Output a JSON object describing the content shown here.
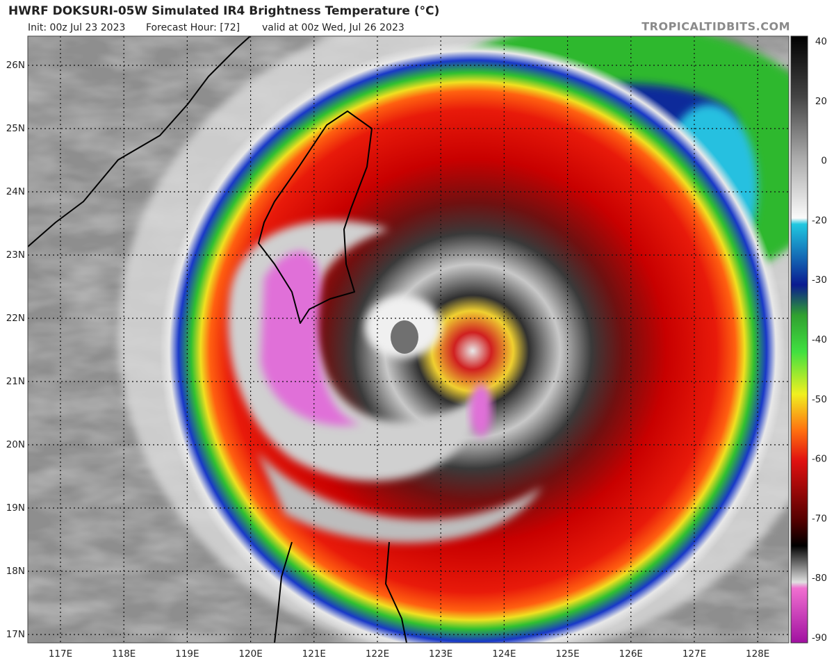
{
  "header": {
    "title": "HWRF DOKSURI-05W Simulated IR4 Brightness Temperature (°C)",
    "init": "Init: 00z Jul 23 2023",
    "forecast_hour": "Forecast Hour: [72]",
    "valid": "valid at 00z Wed, Jul 26 2023",
    "site": "TROPICALTIDBITS.COM"
  },
  "map": {
    "lat_labels": [
      "26N",
      "25N",
      "24N",
      "23N",
      "22N",
      "21N",
      "20N",
      "19N",
      "18N",
      "17N"
    ],
    "lon_labels": [
      "117E",
      "118E",
      "119E",
      "120E",
      "121E",
      "122E",
      "123E",
      "124E",
      "125E",
      "126E",
      "127E",
      "128E"
    ]
  },
  "colorbar": {
    "ticks": [
      40,
      20,
      0,
      -20,
      -30,
      -40,
      -50,
      -60,
      -70,
      -80,
      -90
    ]
  }
}
